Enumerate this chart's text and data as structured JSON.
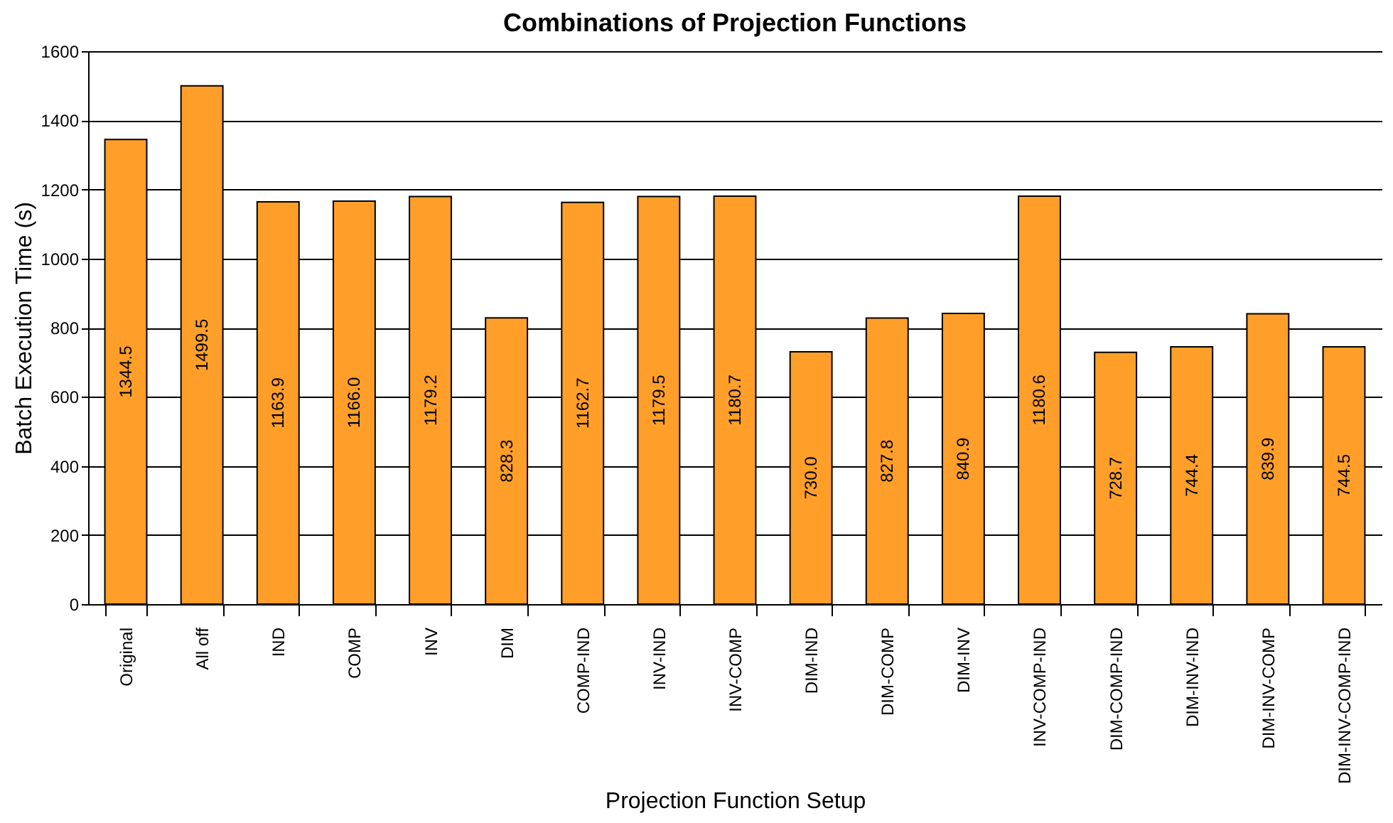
{
  "chart_data": {
    "type": "bar",
    "title": "Combinations of Projection Functions",
    "xlabel": "Projection Function Setup",
    "ylabel": "Batch Execution Time (s)",
    "categories": [
      "Original",
      "All off",
      "IND",
      "COMP",
      "INV",
      "DIM",
      "COMP-IND",
      "INV-IND",
      "INV-COMP",
      "DIM-IND",
      "DIM-COMP",
      "DIM-INV",
      "INV-COMP-IND",
      "DIM-COMP-IND",
      "DIM-INV-IND",
      "DIM-INV-COMP",
      "DIM-INV-COMP-IND"
    ],
    "values": [
      1344.5,
      1499.5,
      1163.9,
      1166.0,
      1179.2,
      828.3,
      1162.7,
      1179.5,
      1180.7,
      730.0,
      827.8,
      840.9,
      1180.6,
      728.7,
      744.4,
      839.9,
      744.5
    ],
    "value_labels": [
      "1344.5",
      "1499.5",
      "1163.9",
      "1166.0",
      "1179.2",
      "828.3",
      "1162.7",
      "1179.5",
      "1180.7",
      "730.0",
      "827.8",
      "840.9",
      "1180.6",
      "728.7",
      "744.4",
      "839.9",
      "744.5"
    ],
    "color": "#ff9f2a",
    "ylim": [
      0,
      1600
    ],
    "yticks": [
      0,
      200,
      400,
      600,
      800,
      1000,
      1200,
      1400,
      1600
    ],
    "grid": "y"
  }
}
